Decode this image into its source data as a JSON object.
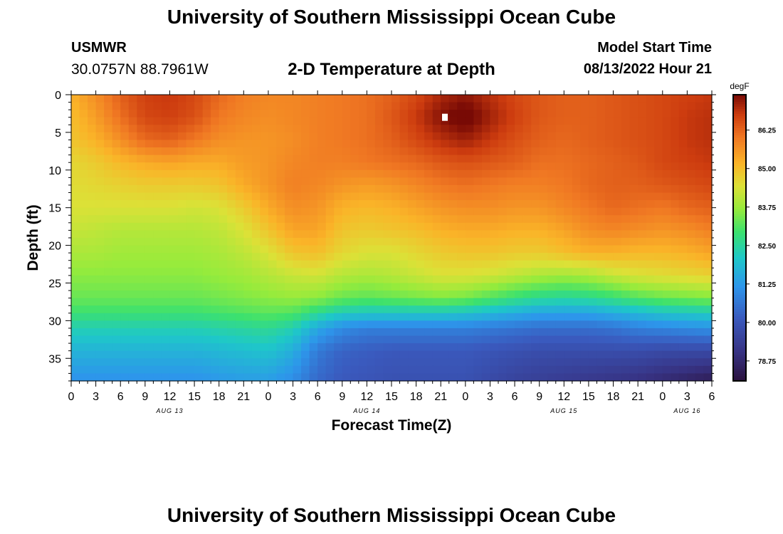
{
  "header": {
    "title": "University of Southern Mississippi Ocean Cube",
    "station": "USMWR",
    "coords": "30.0757N  88.7961W",
    "subtitle": "2-D Temperature at Depth",
    "start_label": "Model Start Time",
    "start_value": "08/13/2022 Hour 21"
  },
  "footer": {
    "title": "University of Southern Mississippi Ocean Cube"
  },
  "colors": {
    "text": "#000000",
    "background": "#ffffff",
    "marker": "#ffffff"
  },
  "chart_data": {
    "type": "heatmap",
    "title": "2-D Temperature at Depth",
    "xlabel": "Forecast Time(Z)",
    "ylabel": "Depth (ft)",
    "x_range_hours": [
      0,
      78
    ],
    "y_range_ft": [
      0,
      38
    ],
    "y_reversed": true,
    "x_ticks": [
      {
        "hour": 0,
        "label": "0"
      },
      {
        "hour": 3,
        "label": "3"
      },
      {
        "hour": 6,
        "label": "6"
      },
      {
        "hour": 9,
        "label": "9"
      },
      {
        "hour": 12,
        "label": "12"
      },
      {
        "hour": 15,
        "label": "15"
      },
      {
        "hour": 18,
        "label": "18"
      },
      {
        "hour": 21,
        "label": "21"
      },
      {
        "hour": 24,
        "label": "0"
      },
      {
        "hour": 27,
        "label": "3"
      },
      {
        "hour": 30,
        "label": "6"
      },
      {
        "hour": 33,
        "label": "9"
      },
      {
        "hour": 36,
        "label": "12"
      },
      {
        "hour": 39,
        "label": "15"
      },
      {
        "hour": 42,
        "label": "18"
      },
      {
        "hour": 45,
        "label": "21"
      },
      {
        "hour": 48,
        "label": "0"
      },
      {
        "hour": 51,
        "label": "3"
      },
      {
        "hour": 54,
        "label": "6"
      },
      {
        "hour": 57,
        "label": "9"
      },
      {
        "hour": 60,
        "label": "12"
      },
      {
        "hour": 63,
        "label": "15"
      },
      {
        "hour": 66,
        "label": "18"
      },
      {
        "hour": 69,
        "label": "21"
      },
      {
        "hour": 72,
        "label": "0"
      },
      {
        "hour": 75,
        "label": "3"
      },
      {
        "hour": 78,
        "label": "6"
      }
    ],
    "date_labels": [
      {
        "hour": 12,
        "label": "AUG 13"
      },
      {
        "hour": 36,
        "label": "AUG 14"
      },
      {
        "hour": 60,
        "label": "AUG 15"
      },
      {
        "hour": 75,
        "label": "AUG 16"
      }
    ],
    "y_ticks": [
      0,
      5,
      10,
      15,
      20,
      25,
      30,
      35
    ],
    "colorbar": {
      "unit": "degF",
      "min": 78.1,
      "max": 87.4,
      "labels": [
        "86.25",
        "85.00",
        "83.75",
        "82.50",
        "81.25",
        "80.00",
        "78.75"
      ]
    },
    "marker": {
      "hour": 45.5,
      "depth_ft": 3.0
    },
    "depths_ft": [
      0,
      3,
      6,
      9,
      12,
      15,
      18,
      21,
      24,
      27,
      29,
      31,
      34,
      38
    ],
    "hours": [
      0,
      3,
      6,
      9,
      12,
      15,
      18,
      21,
      24,
      27,
      30,
      33,
      36,
      39,
      42,
      45,
      48,
      51,
      54,
      57,
      60,
      63,
      66,
      69,
      72,
      75,
      78
    ],
    "values_degF": [
      [
        85.2,
        85.7,
        86.3,
        86.7,
        86.8,
        86.6,
        86.2,
        85.9,
        85.8,
        85.8,
        85.9,
        86.0,
        86.1,
        86.3,
        86.6,
        87.0,
        87.2,
        86.9,
        86.6,
        86.4,
        86.3,
        86.3,
        86.4,
        86.5,
        86.6,
        86.7,
        86.8
      ],
      [
        85.0,
        85.5,
        86.1,
        86.6,
        86.7,
        86.5,
        86.0,
        85.8,
        85.7,
        85.8,
        85.9,
        86.0,
        86.1,
        86.4,
        86.8,
        87.3,
        87.6,
        87.1,
        86.7,
        86.4,
        86.3,
        86.3,
        86.4,
        86.5,
        86.6,
        86.8,
        86.9
      ],
      [
        84.9,
        85.2,
        85.7,
        86.2,
        86.3,
        86.0,
        85.7,
        85.6,
        85.6,
        85.7,
        85.9,
        86.0,
        86.1,
        86.3,
        86.6,
        86.9,
        87.1,
        86.8,
        86.5,
        86.3,
        86.2,
        86.3,
        86.4,
        86.5,
        86.6,
        86.8,
        86.9
      ],
      [
        84.6,
        84.8,
        85.1,
        85.3,
        85.4,
        85.3,
        85.3,
        85.5,
        85.6,
        85.8,
        85.9,
        85.9,
        86.0,
        86.1,
        86.2,
        86.4,
        86.5,
        86.4,
        86.3,
        86.1,
        86.1,
        86.2,
        86.3,
        86.4,
        86.6,
        86.7,
        86.8
      ],
      [
        84.5,
        84.6,
        84.7,
        84.8,
        84.8,
        84.8,
        84.9,
        85.3,
        85.6,
        85.9,
        85.8,
        85.6,
        85.5,
        85.6,
        85.8,
        86.0,
        86.1,
        86.0,
        85.9,
        85.9,
        86.0,
        86.2,
        86.3,
        86.3,
        86.4,
        86.5,
        86.6
      ],
      [
        84.4,
        84.4,
        84.4,
        84.4,
        84.4,
        84.3,
        84.4,
        84.8,
        85.3,
        85.7,
        85.6,
        85.2,
        85.1,
        85.2,
        85.4,
        85.6,
        85.7,
        85.7,
        85.6,
        85.6,
        85.8,
        86.0,
        86.2,
        86.1,
        86.0,
        86.2,
        86.3
      ],
      [
        84.2,
        84.1,
        84.0,
        84.0,
        84.0,
        84.0,
        84.1,
        84.4,
        84.9,
        85.4,
        85.4,
        84.9,
        84.8,
        84.9,
        85.0,
        85.2,
        85.3,
        85.3,
        85.2,
        85.2,
        85.4,
        85.7,
        85.8,
        85.7,
        85.6,
        85.7,
        85.9
      ],
      [
        83.9,
        83.9,
        83.8,
        83.8,
        83.8,
        83.8,
        83.9,
        84.1,
        84.4,
        84.9,
        85.0,
        84.6,
        84.4,
        84.4,
        84.6,
        84.8,
        84.9,
        84.9,
        84.8,
        84.8,
        85.0,
        85.2,
        85.2,
        85.1,
        85.1,
        85.2,
        85.4
      ],
      [
        83.6,
        83.6,
        83.6,
        83.6,
        83.6,
        83.6,
        83.7,
        83.8,
        84.0,
        84.2,
        84.3,
        84.0,
        83.9,
        84.0,
        84.2,
        84.4,
        84.4,
        84.3,
        84.1,
        83.9,
        83.8,
        83.9,
        84.2,
        84.4,
        84.5,
        84.6,
        84.7
      ],
      [
        83.3,
        83.3,
        83.3,
        83.3,
        83.3,
        83.3,
        83.4,
        83.5,
        83.6,
        83.7,
        83.6,
        83.3,
        83.2,
        83.3,
        83.4,
        83.5,
        83.4,
        83.1,
        82.8,
        82.6,
        82.5,
        82.6,
        82.8,
        83.1,
        83.3,
        83.4,
        83.5
      ],
      [
        82.9,
        82.9,
        82.9,
        82.9,
        82.9,
        82.9,
        83.0,
        83.1,
        83.2,
        83.1,
        82.6,
        82.2,
        82.1,
        82.1,
        82.1,
        82.1,
        82.0,
        81.8,
        81.6,
        81.4,
        81.4,
        81.4,
        81.6,
        81.8,
        82.0,
        82.1,
        82.2
      ],
      [
        82.3,
        82.3,
        82.3,
        82.3,
        82.3,
        82.3,
        82.4,
        82.5,
        82.6,
        82.3,
        81.5,
        81.0,
        80.8,
        80.8,
        80.8,
        80.8,
        80.8,
        80.7,
        80.6,
        80.5,
        80.5,
        80.5,
        80.6,
        80.8,
        80.9,
        81.0,
        81.1
      ],
      [
        81.7,
        81.7,
        81.7,
        81.7,
        81.7,
        81.7,
        81.8,
        81.9,
        82.0,
        81.6,
        80.7,
        80.3,
        80.2,
        80.1,
        80.1,
        80.1,
        80.1,
        80.0,
        79.9,
        79.8,
        79.8,
        79.8,
        79.8,
        79.8,
        79.7,
        79.7,
        79.7
      ],
      [
        81.1,
        81.1,
        81.1,
        81.1,
        81.1,
        81.1,
        81.2,
        81.3,
        81.3,
        81.0,
        80.4,
        80.1,
        80.0,
        79.9,
        79.9,
        79.9,
        79.9,
        79.7,
        79.5,
        79.4,
        79.3,
        79.2,
        79.1,
        79.0,
        78.8,
        78.6,
        78.4
      ]
    ]
  }
}
